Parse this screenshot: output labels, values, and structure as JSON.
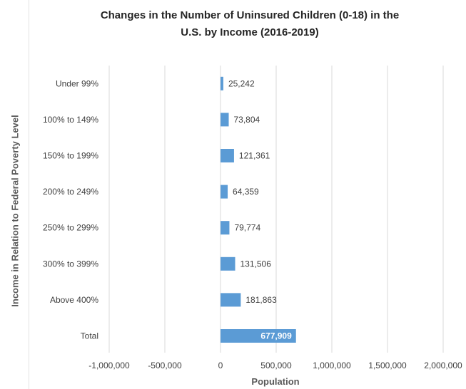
{
  "chart_data": {
    "type": "bar",
    "orientation": "horizontal",
    "title_line1": "Changes in the Number of Uninsured Children (0-18) in the",
    "title_line2": "U.S. by Income (2016-2019)",
    "xlabel": "Population",
    "ylabel": "Income in Relation to Federal Poverty Level",
    "categories": [
      "Under 99%",
      "100% to 149%",
      "150% to 199%",
      "200% to 249%",
      "250% to 299%",
      "300% to 399%",
      "Above 400%",
      "Total"
    ],
    "values": [
      25242,
      73804,
      121361,
      64359,
      79774,
      131506,
      181863,
      677909
    ],
    "value_labels": [
      "25,242",
      "73,804",
      "121,361",
      "64,359",
      "79,774",
      "131,506",
      "181,863",
      "677,909"
    ],
    "xlim": [
      -1000000,
      2000000
    ],
    "xticks": [
      -1000000,
      -500000,
      0,
      500000,
      1000000,
      1500000,
      2000000
    ],
    "xtick_labels": [
      "-1,000,000",
      "-500,000",
      "0",
      "500,000",
      "1,000,000",
      "1,500,000",
      "2,000,000"
    ],
    "grid": "vertical",
    "legend": "none",
    "bar_color": "#5b9bd5",
    "gridline_color": "#d9d9d9",
    "label_color": "#404040",
    "total_label_color": "#ffffff"
  }
}
